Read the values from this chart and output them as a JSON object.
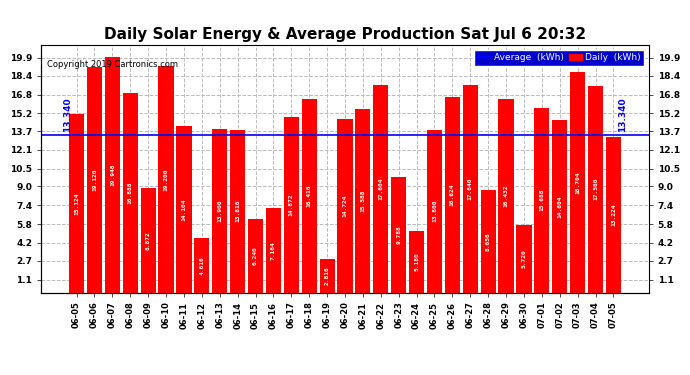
{
  "title": "Daily Solar Energy & Average Production Sat Jul 6 20:32",
  "copyright": "Copyright 2019 Cartronics.com",
  "average_value": 13.34,
  "categories": [
    "06-05",
    "06-06",
    "06-07",
    "06-08",
    "06-09",
    "06-10",
    "06-11",
    "06-12",
    "06-13",
    "06-14",
    "06-15",
    "06-16",
    "06-17",
    "06-18",
    "06-19",
    "06-20",
    "06-21",
    "06-22",
    "06-23",
    "06-24",
    "06-25",
    "06-26",
    "06-27",
    "06-28",
    "06-29",
    "06-30",
    "07-01",
    "07-02",
    "07-03",
    "07-04",
    "07-05"
  ],
  "values": [
    15.124,
    19.12,
    19.948,
    16.888,
    8.872,
    19.2,
    14.104,
    4.616,
    13.9,
    13.816,
    6.24,
    7.164,
    14.872,
    16.416,
    2.816,
    14.724,
    15.588,
    17.604,
    9.788,
    5.18,
    13.8,
    16.624,
    17.64,
    8.656,
    16.432,
    5.72,
    15.688,
    14.604,
    18.704,
    17.56,
    13.224
  ],
  "bar_color": "#FF0000",
  "average_line_color": "#0000FF",
  "background_color": "#FFFFFF",
  "yticks": [
    1.1,
    2.7,
    4.2,
    5.8,
    7.4,
    9.0,
    10.5,
    12.1,
    13.7,
    15.2,
    16.8,
    18.4,
    19.9
  ],
  "ylim": [
    0.0,
    21.0
  ],
  "grid_color": "#BBBBBB",
  "title_fontsize": 11,
  "avg_label": "13.340"
}
